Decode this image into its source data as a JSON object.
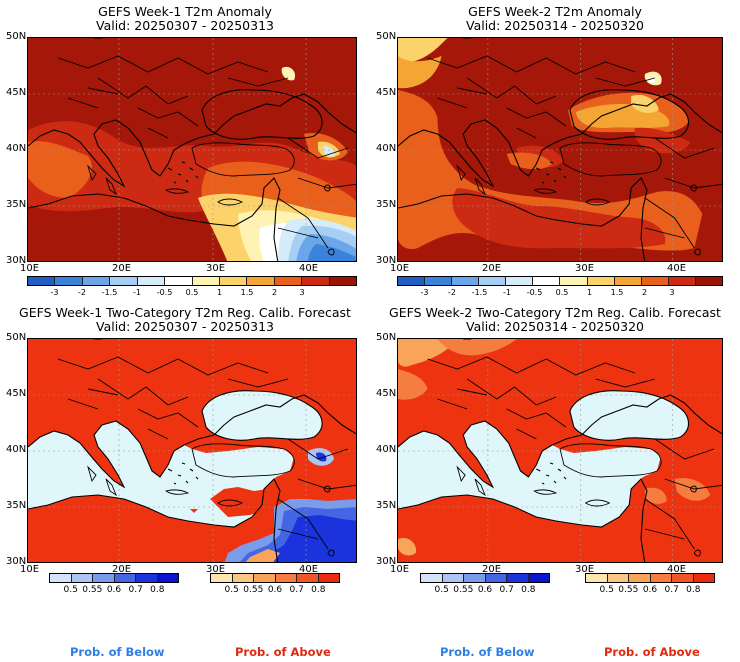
{
  "panels": [
    {
      "title": "GEFS Week-1 T2m Anomaly",
      "valid": "Valid: 20250307 - 20250313"
    },
    {
      "title": "GEFS Week-2 T2m Anomaly",
      "valid": "Valid: 20250314 - 20250320"
    },
    {
      "title": "GEFS Week-1 Two-Category T2m Reg. Calib. Forecast",
      "valid": "Valid: 20250307 - 20250313"
    },
    {
      "title": "GEFS Week-2 Two-Category T2m Reg. Calib. Forecast",
      "valid": "Valid: 20250314 - 20250320"
    }
  ],
  "lat_labels": [
    "50N",
    "45N",
    "40N",
    "35N",
    "30N"
  ],
  "lon_labels": [
    "10E",
    "20E",
    "30E",
    "40E"
  ],
  "anomaly_colorbar": {
    "ticks": [
      "-3",
      "-2",
      "-1.5",
      "-1",
      "-0.5",
      "0.5",
      "1",
      "1.5",
      "2",
      "3"
    ],
    "colors": [
      "#1f5fc4",
      "#3b82dc",
      "#6aa6ea",
      "#a6cff3",
      "#d6ecfa",
      "#ffffff",
      "#fff3b3",
      "#fcd36a",
      "#f5a533",
      "#e8601c",
      "#cc2a12",
      "#9e1306"
    ]
  },
  "prob_below": {
    "ticks": [
      "0.5",
      "0.55",
      "0.6",
      "0.7",
      "0.8"
    ],
    "colors": [
      "#d6e2fa",
      "#aec6f4",
      "#7b9cec",
      "#4466e4",
      "#1a33dd",
      "#0a14d2"
    ]
  },
  "prob_above": {
    "ticks": [
      "0.5",
      "0.55",
      "0.6",
      "0.7",
      "0.8"
    ],
    "colors": [
      "#fde6b0",
      "#fbc784",
      "#f8a55a",
      "#f57d40",
      "#f25528",
      "#ee2a10"
    ]
  },
  "legend": {
    "below": "Prob. of Below",
    "above": "Prob. of Above"
  },
  "colors": {
    "anomaly_dark": "#a51709",
    "anomaly_red": "#cc2a12",
    "anomaly_orange": "#e8601c",
    "prob_above_red": "#ee3311",
    "sea_light": "#dff6fb",
    "below_blue": "#2b44e0",
    "prob_below_label": "#2f7fe0",
    "prob_above_label": "#e02a10"
  }
}
